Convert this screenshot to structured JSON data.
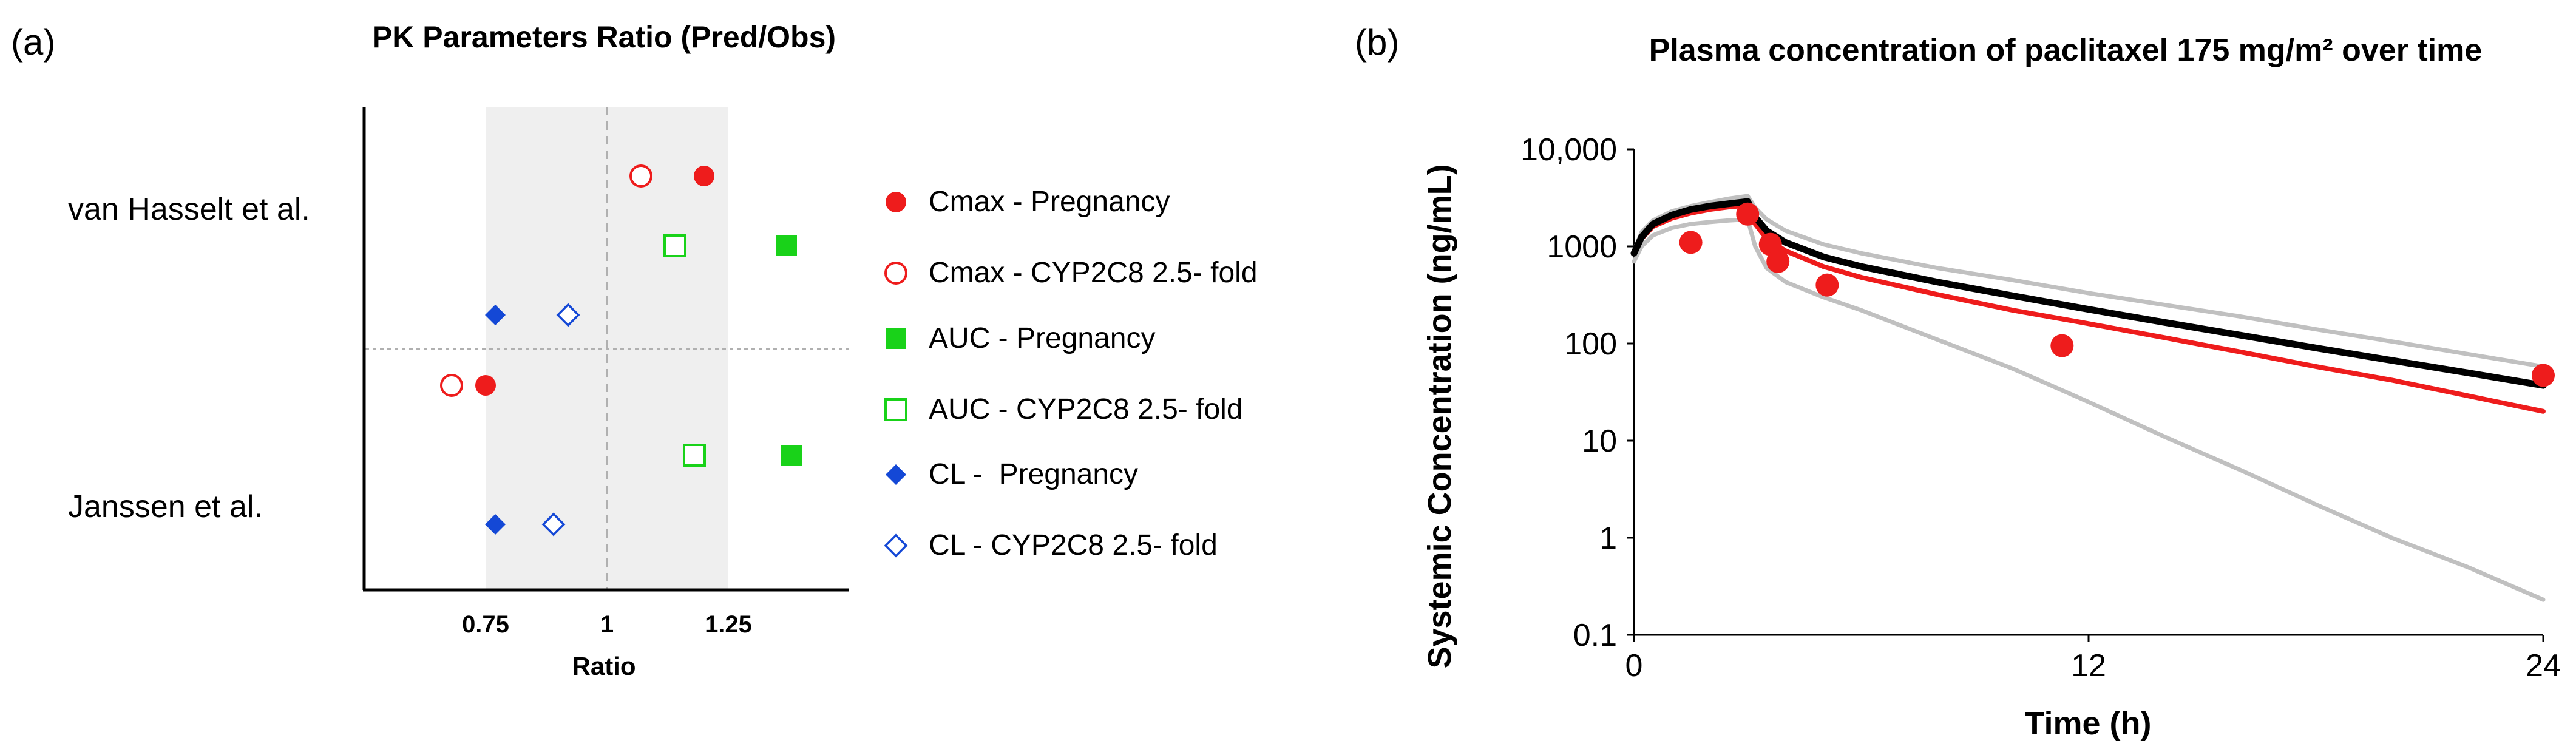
{
  "chart_data": [
    {
      "panel_label": "(a)",
      "type": "scatter",
      "title": "PK Parameters Ratio (Pred/Obs)",
      "xlabel": "Ratio",
      "ylabel": "",
      "xlim": [
        0.5,
        1.5
      ],
      "x_ticks": [
        {
          "value": 0.75,
          "label": "0.75"
        },
        {
          "value": 1,
          "label": "1"
        },
        {
          "value": 1.25,
          "label": "1.25"
        }
      ],
      "shaded_region": [
        0.75,
        1.25
      ],
      "reference_line": 1,
      "groups": [
        "van Hasselt et al.",
        "Janssen et al."
      ],
      "series": [
        {
          "name": "Cmax - Pregnancy",
          "marker": "circle-filled",
          "color": "#ee1c1c",
          "points": [
            {
              "group": "van Hasselt et al.",
              "x": 1.2
            },
            {
              "group": "Janssen et al.",
              "x": 0.75
            }
          ]
        },
        {
          "name": "Cmax - CYP2C8 2.5- fold",
          "marker": "circle-open",
          "color": "#ee1c1c",
          "points": [
            {
              "group": "van Hasselt et al.",
              "x": 1.07
            },
            {
              "group": "Janssen et al.",
              "x": 0.68
            }
          ]
        },
        {
          "name": "AUC - Pregnancy",
          "marker": "square-filled",
          "color": "#19d219",
          "points": [
            {
              "group": "van Hasselt et al.",
              "x": 1.37
            },
            {
              "group": "Janssen et al.",
              "x": 1.38
            }
          ]
        },
        {
          "name": "AUC - CYP2C8 2.5- fold",
          "marker": "square-open",
          "color": "#19d219",
          "points": [
            {
              "group": "van Hasselt et al.",
              "x": 1.14
            },
            {
              "group": "Janssen et al.",
              "x": 1.18
            }
          ]
        },
        {
          "name": "CL -  Pregnancy",
          "marker": "diamond-filled",
          "color": "#1448d6",
          "points": [
            {
              "group": "van Hasselt et al.",
              "x": 0.77
            },
            {
              "group": "Janssen et al.",
              "x": 0.77
            }
          ]
        },
        {
          "name": "CL - CYP2C8 2.5- fold",
          "marker": "diamond-open",
          "color": "#1448d6",
          "points": [
            {
              "group": "van Hasselt et al.",
              "x": 0.92
            },
            {
              "group": "Janssen et al.",
              "x": 0.89
            }
          ]
        }
      ]
    },
    {
      "panel_label": "(b)",
      "type": "line",
      "title": "Plasma concentration of paclitaxel 175 mg/m² over time",
      "xlabel": "Time (h)",
      "ylabel": "Systemic Concentration (ng/mL)",
      "xlim": [
        0,
        24
      ],
      "ylim": [
        0.1,
        10000
      ],
      "y_scale": "log",
      "x_ticks": [
        {
          "value": 0,
          "label": "0"
        },
        {
          "value": 12,
          "label": "12"
        },
        {
          "value": 24,
          "label": "24"
        }
      ],
      "y_ticks": [
        {
          "value": 0.1,
          "label": "0.1"
        },
        {
          "value": 1,
          "label": "1"
        },
        {
          "value": 10,
          "label": "10"
        },
        {
          "value": 100,
          "label": "100"
        },
        {
          "value": 1000,
          "label": "1000"
        },
        {
          "value": 10000,
          "label": "10,000"
        }
      ],
      "series": [
        {
          "name": "upper bound",
          "color": "#c0c0c0",
          "x": [
            0,
            0.2,
            0.5,
            1,
            1.5,
            2,
            2.5,
            3,
            3.2,
            3.5,
            4,
            5,
            6,
            8,
            10,
            12,
            14,
            16,
            18,
            20,
            22,
            24
          ],
          "y": [
            900,
            1400,
            1850,
            2300,
            2600,
            2850,
            3100,
            3300,
            2500,
            1900,
            1450,
            1050,
            850,
            600,
            450,
            330,
            250,
            190,
            140,
            105,
            78,
            58
          ]
        },
        {
          "name": "lower bound",
          "color": "#c0c0c0",
          "x": [
            0,
            0.2,
            0.5,
            1,
            1.5,
            2,
            2.5,
            3,
            3.2,
            3.5,
            4,
            5,
            6,
            8,
            10,
            12,
            14,
            16,
            18,
            20,
            22,
            24
          ],
          "y": [
            700,
            1000,
            1300,
            1550,
            1700,
            1780,
            1850,
            1900,
            1000,
            600,
            430,
            300,
            220,
            110,
            55,
            25,
            11,
            5,
            2.2,
            1,
            0.5,
            0.23
          ]
        },
        {
          "name": "predicted (red)",
          "color": "#ee1c1c",
          "x": [
            0,
            0.2,
            0.5,
            1,
            1.5,
            2,
            2.5,
            3,
            3.2,
            3.5,
            4,
            5,
            6,
            8,
            10,
            12,
            14,
            16,
            18,
            20,
            22,
            24
          ],
          "y": [
            850,
            1200,
            1600,
            1950,
            2200,
            2400,
            2550,
            2650,
            1700,
            1200,
            900,
            620,
            480,
            320,
            220,
            160,
            115,
            82,
            58,
            42,
            29,
            20
          ]
        },
        {
          "name": "predicted (black)",
          "color": "#000000",
          "x": [
            0,
            0.2,
            0.5,
            1,
            1.5,
            2,
            2.5,
            3,
            3.2,
            3.5,
            4,
            5,
            6,
            8,
            10,
            12,
            14,
            16,
            18,
            20,
            22,
            24
          ],
          "y": [
            850,
            1250,
            1700,
            2100,
            2400,
            2600,
            2750,
            2900,
            2000,
            1450,
            1100,
            780,
            620,
            430,
            310,
            225,
            165,
            122,
            90,
            67,
            50,
            37
          ]
        },
        {
          "name": "observed",
          "color": "#ee1c1c",
          "marker": "circle-filled",
          "x": [
            1.5,
            3,
            3.6,
            3.8,
            5.1,
            11.3,
            24
          ],
          "y": [
            1100,
            2150,
            1050,
            700,
            400,
            95,
            47
          ]
        }
      ]
    }
  ]
}
